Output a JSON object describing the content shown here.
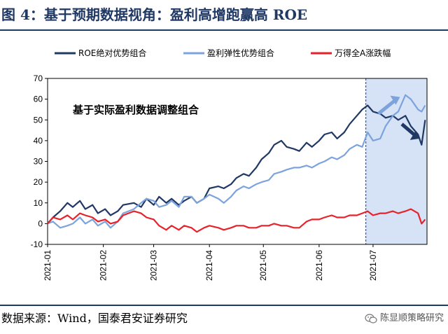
{
  "figure": {
    "title": "图 4：基于预期数据视角：盈利高增跑赢高 ROE",
    "source": "数据来源：Wind，国泰君安证券研究",
    "brand": "陈显顺策略研究"
  },
  "chart_data": {
    "type": "line",
    "title": "",
    "xlabel": "",
    "ylabel": "",
    "ylim": [
      -10,
      70
    ],
    "yticks": [
      -10,
      0,
      10,
      20,
      30,
      40,
      50,
      60,
      70
    ],
    "grid": false,
    "legend_position": "top",
    "x_range": [
      "2021-01-01",
      "2021-07-31"
    ],
    "xticks": [
      "2021-01",
      "2021-02",
      "2021-03",
      "2021-04",
      "2021-05",
      "2021-06",
      "2021-07"
    ],
    "highlight_region": {
      "from": "2021-06-27",
      "to": "2021-07-31",
      "color": "#d6e2f5"
    },
    "annotation": "基于实际盈利数据调整组合",
    "arrows": [
      {
        "direction": "up",
        "color": "#7ca3dc"
      },
      {
        "direction": "down",
        "color": "#1f3864"
      }
    ],
    "series": [
      {
        "name": "ROE绝对优势组合",
        "color": "#1f3864",
        "points": [
          [
            "2021-01-01",
            0
          ],
          [
            "2021-01-04",
            3
          ],
          [
            "2021-01-08",
            6
          ],
          [
            "2021-01-12",
            10
          ],
          [
            "2021-01-15",
            8
          ],
          [
            "2021-01-19",
            11
          ],
          [
            "2021-01-22",
            7
          ],
          [
            "2021-01-26",
            9
          ],
          [
            "2021-01-29",
            5
          ],
          [
            "2021-02-02",
            7
          ],
          [
            "2021-02-05",
            4
          ],
          [
            "2021-02-09",
            6
          ],
          [
            "2021-02-12",
            9
          ],
          [
            "2021-02-18",
            10
          ],
          [
            "2021-02-22",
            8
          ],
          [
            "2021-02-25",
            12
          ],
          [
            "2021-03-01",
            9
          ],
          [
            "2021-03-04",
            13
          ],
          [
            "2021-03-08",
            10
          ],
          [
            "2021-03-11",
            12
          ],
          [
            "2021-03-15",
            9
          ],
          [
            "2021-03-18",
            11
          ],
          [
            "2021-03-22",
            13
          ],
          [
            "2021-03-25",
            10
          ],
          [
            "2021-03-29",
            12
          ],
          [
            "2021-04-01",
            17
          ],
          [
            "2021-04-06",
            18
          ],
          [
            "2021-04-09",
            17
          ],
          [
            "2021-04-13",
            19
          ],
          [
            "2021-04-16",
            22
          ],
          [
            "2021-04-20",
            24
          ],
          [
            "2021-04-23",
            23
          ],
          [
            "2021-04-27",
            27
          ],
          [
            "2021-04-30",
            31
          ],
          [
            "2021-05-04",
            34
          ],
          [
            "2021-05-07",
            38
          ],
          [
            "2021-05-11",
            40
          ],
          [
            "2021-05-14",
            37
          ],
          [
            "2021-05-18",
            36
          ],
          [
            "2021-05-21",
            35
          ],
          [
            "2021-05-25",
            39
          ],
          [
            "2021-05-28",
            37
          ],
          [
            "2021-06-01",
            40
          ],
          [
            "2021-06-04",
            43
          ],
          [
            "2021-06-08",
            44
          ],
          [
            "2021-06-11",
            41
          ],
          [
            "2021-06-15",
            44
          ],
          [
            "2021-06-18",
            48
          ],
          [
            "2021-06-22",
            52
          ],
          [
            "2021-06-25",
            55
          ],
          [
            "2021-06-28",
            57
          ],
          [
            "2021-07-01",
            54
          ],
          [
            "2021-07-05",
            53
          ],
          [
            "2021-07-08",
            51
          ],
          [
            "2021-07-12",
            52
          ],
          [
            "2021-07-15",
            50
          ],
          [
            "2021-07-19",
            52
          ],
          [
            "2021-07-22",
            47
          ],
          [
            "2021-07-26",
            43
          ],
          [
            "2021-07-28",
            38
          ],
          [
            "2021-07-30",
            50
          ]
        ]
      },
      {
        "name": "盈利弹性优势组合",
        "color": "#7ca3dc",
        "points": [
          [
            "2021-01-01",
            0
          ],
          [
            "2021-01-04",
            1
          ],
          [
            "2021-01-08",
            -2
          ],
          [
            "2021-01-12",
            -1
          ],
          [
            "2021-01-15",
            0
          ],
          [
            "2021-01-19",
            3
          ],
          [
            "2021-01-22",
            0
          ],
          [
            "2021-01-26",
            2
          ],
          [
            "2021-01-29",
            -1
          ],
          [
            "2021-02-02",
            1
          ],
          [
            "2021-02-05",
            -2
          ],
          [
            "2021-02-09",
            1
          ],
          [
            "2021-02-12",
            5
          ],
          [
            "2021-02-18",
            7
          ],
          [
            "2021-02-22",
            10
          ],
          [
            "2021-02-25",
            12
          ],
          [
            "2021-03-01",
            11
          ],
          [
            "2021-03-04",
            8
          ],
          [
            "2021-03-08",
            9
          ],
          [
            "2021-03-11",
            11
          ],
          [
            "2021-03-15",
            8
          ],
          [
            "2021-03-18",
            13
          ],
          [
            "2021-03-22",
            13
          ],
          [
            "2021-03-25",
            10
          ],
          [
            "2021-03-29",
            12
          ],
          [
            "2021-04-01",
            14
          ],
          [
            "2021-04-06",
            12
          ],
          [
            "2021-04-09",
            10
          ],
          [
            "2021-04-13",
            13
          ],
          [
            "2021-04-16",
            16
          ],
          [
            "2021-04-20",
            18
          ],
          [
            "2021-04-23",
            17
          ],
          [
            "2021-04-27",
            19
          ],
          [
            "2021-04-30",
            20
          ],
          [
            "2021-05-04",
            21
          ],
          [
            "2021-05-07",
            24
          ],
          [
            "2021-05-11",
            25
          ],
          [
            "2021-05-14",
            26
          ],
          [
            "2021-05-18",
            27
          ],
          [
            "2021-05-21",
            27
          ],
          [
            "2021-05-25",
            28
          ],
          [
            "2021-05-28",
            27
          ],
          [
            "2021-06-01",
            29
          ],
          [
            "2021-06-04",
            30
          ],
          [
            "2021-06-08",
            32
          ],
          [
            "2021-06-11",
            31
          ],
          [
            "2021-06-15",
            33
          ],
          [
            "2021-06-18",
            36
          ],
          [
            "2021-06-22",
            38
          ],
          [
            "2021-06-25",
            37
          ],
          [
            "2021-06-28",
            44
          ],
          [
            "2021-07-01",
            40
          ],
          [
            "2021-07-05",
            41
          ],
          [
            "2021-07-08",
            47
          ],
          [
            "2021-07-12",
            52
          ],
          [
            "2021-07-15",
            54
          ],
          [
            "2021-07-19",
            62
          ],
          [
            "2021-07-22",
            60
          ],
          [
            "2021-07-26",
            55
          ],
          [
            "2021-07-28",
            54
          ],
          [
            "2021-07-30",
            57
          ]
        ]
      },
      {
        "name": "万得全A涨跌幅",
        "color": "#e8222a",
        "points": [
          [
            "2021-01-01",
            0
          ],
          [
            "2021-01-04",
            3
          ],
          [
            "2021-01-08",
            2
          ],
          [
            "2021-01-12",
            4
          ],
          [
            "2021-01-15",
            2
          ],
          [
            "2021-01-19",
            5
          ],
          [
            "2021-01-22",
            4
          ],
          [
            "2021-01-26",
            3
          ],
          [
            "2021-01-29",
            1
          ],
          [
            "2021-02-02",
            2
          ],
          [
            "2021-02-05",
            0
          ],
          [
            "2021-02-09",
            1
          ],
          [
            "2021-02-12",
            4
          ],
          [
            "2021-02-18",
            6
          ],
          [
            "2021-02-22",
            5
          ],
          [
            "2021-02-25",
            3
          ],
          [
            "2021-03-01",
            2
          ],
          [
            "2021-03-04",
            -1
          ],
          [
            "2021-03-08",
            -3
          ],
          [
            "2021-03-11",
            -1
          ],
          [
            "2021-03-15",
            -3
          ],
          [
            "2021-03-18",
            -1
          ],
          [
            "2021-03-22",
            -2
          ],
          [
            "2021-03-25",
            -4
          ],
          [
            "2021-03-29",
            -2
          ],
          [
            "2021-04-01",
            -1
          ],
          [
            "2021-04-06",
            -2
          ],
          [
            "2021-04-09",
            -3
          ],
          [
            "2021-04-13",
            -2
          ],
          [
            "2021-04-16",
            -1
          ],
          [
            "2021-04-20",
            -1
          ],
          [
            "2021-04-23",
            -2
          ],
          [
            "2021-04-27",
            -2
          ],
          [
            "2021-04-30",
            -1
          ],
          [
            "2021-05-04",
            -1
          ],
          [
            "2021-05-07",
            0
          ],
          [
            "2021-05-11",
            -1
          ],
          [
            "2021-05-14",
            -1
          ],
          [
            "2021-05-18",
            -2
          ],
          [
            "2021-05-21",
            -2
          ],
          [
            "2021-05-25",
            1
          ],
          [
            "2021-05-28",
            2
          ],
          [
            "2021-06-01",
            2
          ],
          [
            "2021-06-04",
            3
          ],
          [
            "2021-06-08",
            4
          ],
          [
            "2021-06-11",
            3
          ],
          [
            "2021-06-15",
            3
          ],
          [
            "2021-06-18",
            4
          ],
          [
            "2021-06-22",
            4
          ],
          [
            "2021-06-25",
            5
          ],
          [
            "2021-06-28",
            6
          ],
          [
            "2021-07-01",
            4
          ],
          [
            "2021-07-05",
            5
          ],
          [
            "2021-07-08",
            5
          ],
          [
            "2021-07-12",
            6
          ],
          [
            "2021-07-15",
            5
          ],
          [
            "2021-07-19",
            6
          ],
          [
            "2021-07-22",
            7
          ],
          [
            "2021-07-26",
            5
          ],
          [
            "2021-07-28",
            0
          ],
          [
            "2021-07-30",
            2
          ]
        ]
      }
    ]
  }
}
